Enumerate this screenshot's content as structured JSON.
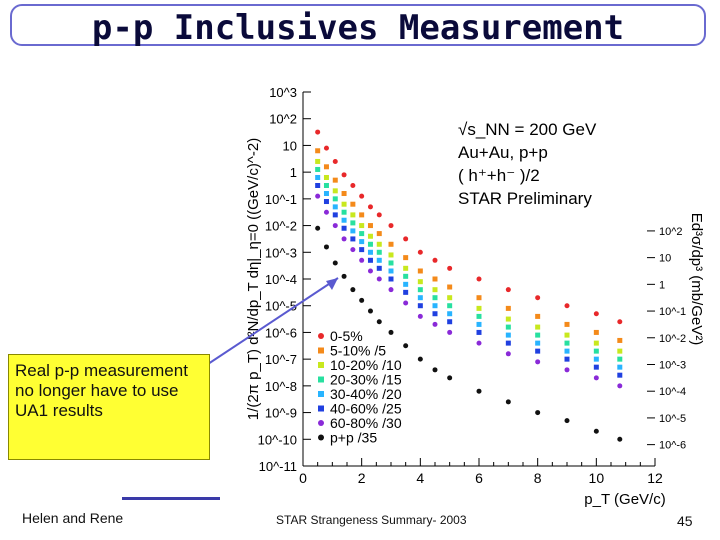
{
  "slide": {
    "title": "p-p Inclusives Measurement",
    "callout": "Real p-p measurement no longer have to use UA1 results",
    "author": "Helen and Rene",
    "footer": "STAR Strangeness Summary- 2003",
    "page_number": "45"
  },
  "chart_data": {
    "type": "scatter",
    "title": "",
    "xlabel": "p_T (GeV/c)",
    "ylabel": "1/(2π p_T) d²N/dp_T dη|_η=0 ((GeV/c)^-2)",
    "ylabel_right": "Ed³σ/dp³ (mb/GeV²)",
    "xlim": [
      0,
      12
    ],
    "ylog_range": [
      -11,
      3
    ],
    "x_ticks": [
      0,
      2,
      4,
      6,
      8,
      10,
      12
    ],
    "x_tick_labels": [
      "0",
      "2",
      "4",
      "6",
      "8",
      "10",
      "12"
    ],
    "y_tick_labels": [
      "10^3",
      "10^2",
      "10",
      "1",
      "10^-1",
      "10^-2",
      "10^-3",
      "10^-4",
      "10^-5",
      "10^-6",
      "10^-7",
      "10^-8",
      "10^-9",
      "10^-10",
      "10^-11"
    ],
    "y_tick_exponents": [
      3,
      2,
      1,
      0,
      -1,
      -2,
      -3,
      -4,
      -5,
      -6,
      -7,
      -8,
      -9,
      -10,
      -11
    ],
    "right_tick_labels": [
      "10^2",
      "10",
      "1",
      "10^-1",
      "10^-2",
      "10^-3",
      "10^-4",
      "10^-5",
      "10^-6"
    ],
    "right_tick_exponents": [
      2,
      1,
      0,
      -1,
      -2,
      -3,
      -4,
      -5,
      -6
    ],
    "annotation": {
      "line1": "√s_NN = 200 GeV",
      "line2": "Au+Au, p+p",
      "line3": "( h⁺+h⁻ )/2",
      "line4": "STAR Preliminary"
    },
    "legend_position": "lower-left",
    "series": [
      {
        "name": "0-5%",
        "color": "#e8282a",
        "marker": "circle",
        "x": [
          0.5,
          0.8,
          1.1,
          1.4,
          1.7,
          2.0,
          2.3,
          2.6,
          3.0,
          3.5,
          4.0,
          4.5,
          5.0,
          6.0,
          7.0,
          8.0,
          9.0,
          10.0,
          10.8
        ],
        "logy": [
          1.5,
          0.9,
          0.4,
          -0.1,
          -0.5,
          -0.9,
          -1.3,
          -1.6,
          -2.0,
          -2.5,
          -3.0,
          -3.3,
          -3.6,
          -4.0,
          -4.4,
          -4.7,
          -5.0,
          -5.3,
          -5.6
        ]
      },
      {
        "name": "5-10% /5",
        "color": "#f48a1a",
        "marker": "square",
        "x": [
          0.5,
          0.8,
          1.1,
          1.4,
          1.7,
          2.0,
          2.3,
          2.6,
          3.0,
          3.5,
          4.0,
          4.5,
          5.0,
          6.0,
          7.0,
          8.0,
          9.0,
          10.0,
          10.8
        ],
        "logy": [
          0.8,
          0.2,
          -0.3,
          -0.8,
          -1.2,
          -1.6,
          -2.0,
          -2.3,
          -2.7,
          -3.2,
          -3.7,
          -4.0,
          -4.3,
          -4.7,
          -5.1,
          -5.4,
          -5.7,
          -6.0,
          -6.3
        ]
      },
      {
        "name": "10-20% /10",
        "color": "#c8e81e",
        "marker": "square",
        "x": [
          0.5,
          0.8,
          1.1,
          1.4,
          1.7,
          2.0,
          2.3,
          2.6,
          3.0,
          3.5,
          4.0,
          4.5,
          5.0,
          6.0,
          7.0,
          8.0,
          9.0,
          10.0,
          10.8
        ],
        "logy": [
          0.4,
          -0.2,
          -0.7,
          -1.2,
          -1.6,
          -2.0,
          -2.4,
          -2.7,
          -3.1,
          -3.6,
          -4.1,
          -4.4,
          -4.7,
          -5.1,
          -5.5,
          -5.8,
          -6.1,
          -6.4,
          -6.7
        ]
      },
      {
        "name": "20-30% /15",
        "color": "#28e0a0",
        "marker": "square",
        "x": [
          0.5,
          0.8,
          1.1,
          1.4,
          1.7,
          2.0,
          2.3,
          2.6,
          3.0,
          3.5,
          4.0,
          4.5,
          5.0,
          6.0,
          7.0,
          8.0,
          9.0,
          10.0,
          10.8
        ],
        "logy": [
          0.1,
          -0.5,
          -1.0,
          -1.5,
          -1.9,
          -2.3,
          -2.7,
          -3.0,
          -3.4,
          -3.9,
          -4.4,
          -4.7,
          -5.0,
          -5.4,
          -5.8,
          -6.1,
          -6.4,
          -6.7,
          -7.0
        ]
      },
      {
        "name": "30-40% /20",
        "color": "#28b4ff",
        "marker": "square",
        "x": [
          0.5,
          0.8,
          1.1,
          1.4,
          1.7,
          2.0,
          2.3,
          2.6,
          3.0,
          3.5,
          4.0,
          4.5,
          5.0,
          6.0,
          7.0,
          8.0,
          9.0,
          10.0,
          10.8
        ],
        "logy": [
          -0.2,
          -0.8,
          -1.3,
          -1.8,
          -2.2,
          -2.6,
          -3.0,
          -3.3,
          -3.7,
          -4.2,
          -4.7,
          -5.0,
          -5.3,
          -5.7,
          -6.1,
          -6.4,
          -6.7,
          -7.0,
          -7.3
        ]
      },
      {
        "name": "40-60% /25",
        "color": "#2040e0",
        "marker": "square",
        "x": [
          0.5,
          0.8,
          1.1,
          1.4,
          1.7,
          2.0,
          2.3,
          2.6,
          3.0,
          3.5,
          4.0,
          4.5,
          5.0,
          6.0,
          7.0,
          8.0,
          9.0,
          10.0,
          10.8
        ],
        "logy": [
          -0.5,
          -1.1,
          -1.6,
          -2.1,
          -2.5,
          -2.9,
          -3.3,
          -3.6,
          -4.0,
          -4.5,
          -5.0,
          -5.3,
          -5.6,
          -6.0,
          -6.4,
          -6.7,
          -7.0,
          -7.3,
          -7.6
        ]
      },
      {
        "name": "60-80% /30",
        "color": "#8a2ad8",
        "marker": "circle",
        "x": [
          0.5,
          0.8,
          1.1,
          1.4,
          1.7,
          2.0,
          2.3,
          2.6,
          3.0,
          3.5,
          4.0,
          4.5,
          5.0,
          6.0,
          7.0,
          8.0,
          9.0,
          10.0,
          10.8
        ],
        "logy": [
          -0.9,
          -1.5,
          -2.0,
          -2.5,
          -2.9,
          -3.3,
          -3.7,
          -4.0,
          -4.4,
          -4.9,
          -5.4,
          -5.7,
          -6.0,
          -6.4,
          -6.8,
          -7.1,
          -7.4,
          -7.7,
          -8.0
        ]
      },
      {
        "name": "p+p /35",
        "color": "#111111",
        "marker": "circle",
        "x": [
          0.5,
          0.8,
          1.1,
          1.4,
          1.7,
          2.0,
          2.3,
          2.6,
          3.0,
          3.5,
          4.0,
          4.5,
          5.0,
          6.0,
          7.0,
          8.0,
          9.0,
          10.0,
          10.8
        ],
        "logy": [
          -2.1,
          -2.8,
          -3.4,
          -3.9,
          -4.4,
          -4.8,
          -5.2,
          -5.6,
          -6.0,
          -6.5,
          -7.0,
          -7.4,
          -7.7,
          -8.2,
          -8.6,
          -9.0,
          -9.3,
          -9.7,
          -10.0
        ]
      }
    ],
    "colors": {
      "axis": "#000000",
      "arrow": "#5a5ad0"
    }
  }
}
